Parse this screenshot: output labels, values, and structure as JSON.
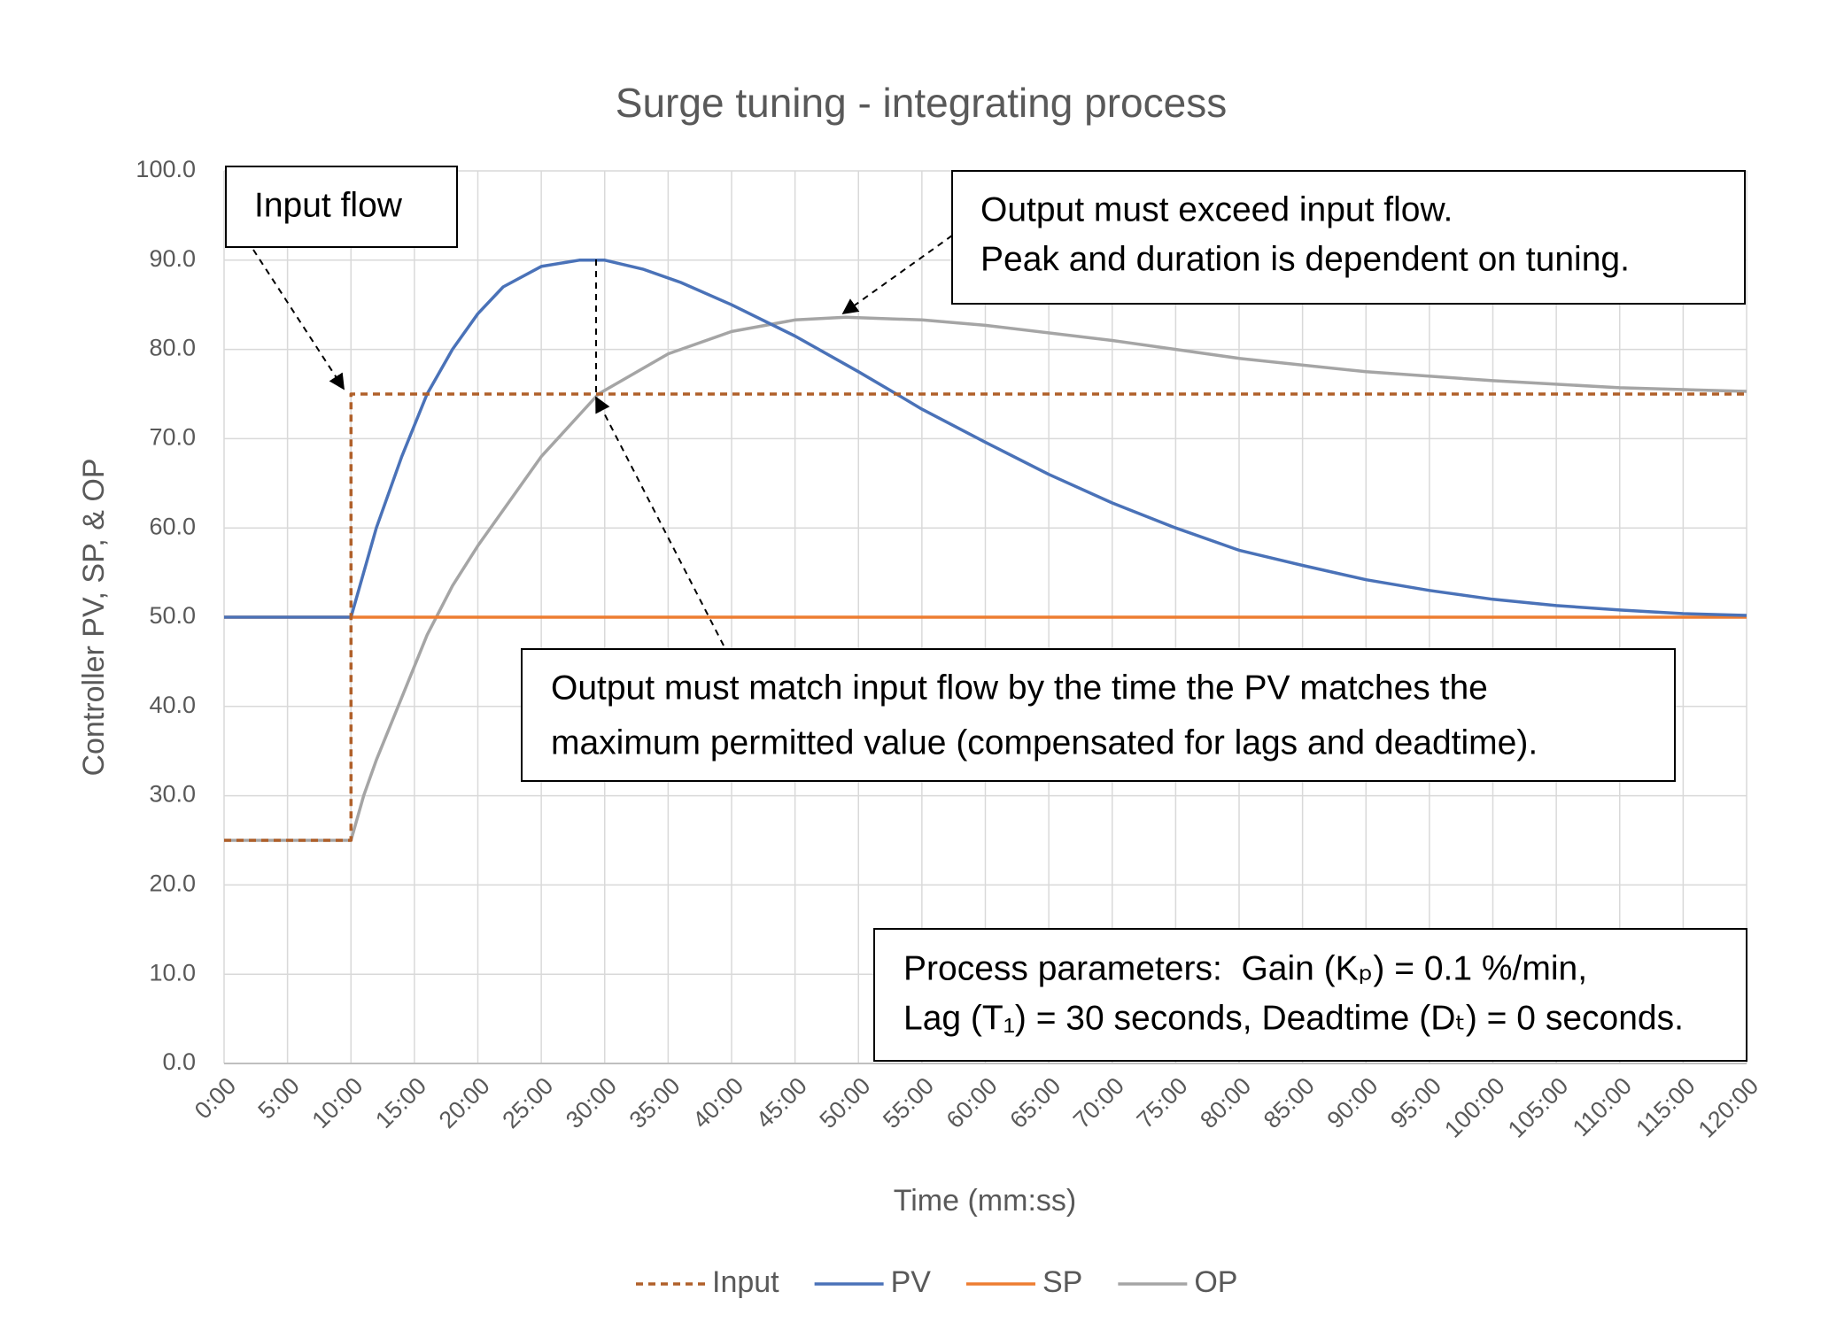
{
  "chart_data": {
    "type": "line",
    "title": "Surge tuning - integrating process",
    "x_label": "Time (mm:ss)",
    "y_label": "Controller PV, SP, & OP",
    "xlim": [
      0,
      120
    ],
    "xticks": [
      {
        "value": 0,
        "label": "0:00"
      },
      {
        "value": 5,
        "label": "5:00"
      },
      {
        "value": 10,
        "label": "10:00"
      },
      {
        "value": 15,
        "label": "15:00"
      },
      {
        "value": 20,
        "label": "20:00"
      },
      {
        "value": 25,
        "label": "25:00"
      },
      {
        "value": 30,
        "label": "30:00"
      },
      {
        "value": 35,
        "label": "35:00"
      },
      {
        "value": 40,
        "label": "40:00"
      },
      {
        "value": 45,
        "label": "45:00"
      },
      {
        "value": 50,
        "label": "50:00"
      },
      {
        "value": 55,
        "label": "55:00"
      },
      {
        "value": 60,
        "label": "60:00"
      },
      {
        "value": 65,
        "label": "65:00"
      },
      {
        "value": 70,
        "label": "70:00"
      },
      {
        "value": 75,
        "label": "75:00"
      },
      {
        "value": 80,
        "label": "80:00"
      },
      {
        "value": 85,
        "label": "85:00"
      },
      {
        "value": 90,
        "label": "90:00"
      },
      {
        "value": 95,
        "label": "95:00"
      },
      {
        "value": 100,
        "label": "100:00"
      },
      {
        "value": 105,
        "label": "105:00"
      },
      {
        "value": 110,
        "label": "110:00"
      },
      {
        "value": 115,
        "label": "115:00"
      },
      {
        "value": 120,
        "label": "120:00"
      }
    ],
    "ylim": [
      0,
      100
    ],
    "yticks": [
      {
        "value": 0,
        "label": "0.0"
      },
      {
        "value": 10,
        "label": "10.0"
      },
      {
        "value": 20,
        "label": "20.0"
      },
      {
        "value": 30,
        "label": "30.0"
      },
      {
        "value": 40,
        "label": "40.0"
      },
      {
        "value": 50,
        "label": "50.0"
      },
      {
        "value": 60,
        "label": "60.0"
      },
      {
        "value": 70,
        "label": "70.0"
      },
      {
        "value": 80,
        "label": "80.0"
      },
      {
        "value": 90,
        "label": "90.0"
      },
      {
        "value": 100,
        "label": "100.0"
      }
    ],
    "grid": true,
    "legend": "bottom",
    "series": [
      {
        "name": "Input",
        "color": "#b0602a",
        "dashed": true,
        "x": [
          0,
          10,
          10,
          120
        ],
        "values": [
          25,
          25,
          75,
          75
        ]
      },
      {
        "name": "PV",
        "color": "#4a72b8",
        "x": [
          0,
          10,
          12,
          14,
          16,
          18,
          20,
          22,
          25,
          28,
          30,
          33,
          36,
          40,
          45,
          50,
          53,
          55,
          60,
          65,
          70,
          75,
          80,
          85,
          90,
          95,
          100,
          105,
          110,
          115,
          120
        ],
        "values": [
          50,
          50,
          60,
          68,
          75,
          80,
          84,
          87,
          89.3,
          90,
          90,
          89,
          87.5,
          85,
          81.5,
          77.5,
          75,
          73.3,
          69.6,
          66,
          62.8,
          60,
          57.5,
          55.8,
          54.2,
          53,
          52,
          51.3,
          50.8,
          50.4,
          50.2
        ]
      },
      {
        "name": "SP",
        "color": "#ed7d31",
        "x": [
          0,
          120
        ],
        "values": [
          50,
          50
        ]
      },
      {
        "name": "OP",
        "color": "#a5a5a5",
        "x": [
          0,
          10,
          11,
          12,
          14,
          16,
          18,
          20,
          25,
          29.5,
          35,
          40,
          45,
          49,
          55,
          60,
          70,
          80,
          90,
          100,
          110,
          120
        ],
        "values": [
          25,
          25,
          30,
          34,
          41,
          48,
          53.5,
          58,
          68,
          75,
          79.5,
          82,
          83.3,
          83.6,
          83.3,
          82.7,
          81,
          79,
          77.5,
          76.5,
          75.7,
          75.3
        ]
      }
    ],
    "annotations": [
      {
        "lines": [
          "Input flow"
        ]
      },
      {
        "lines": [
          "Output must exceed input flow.",
          "Peak and duration is dependent on tuning."
        ]
      },
      {
        "lines": [
          "Output must match input flow by the time the PV matches the",
          "maximum permitted value (compensated for lags and deadtime)."
        ]
      },
      {
        "lines": [
          "Process parameters:  Gain (Kₚ) = 0.1 %/min,",
          "Lag (T₁) = 30 seconds, Deadtime (Dₜ) = 0 seconds."
        ]
      }
    ]
  }
}
